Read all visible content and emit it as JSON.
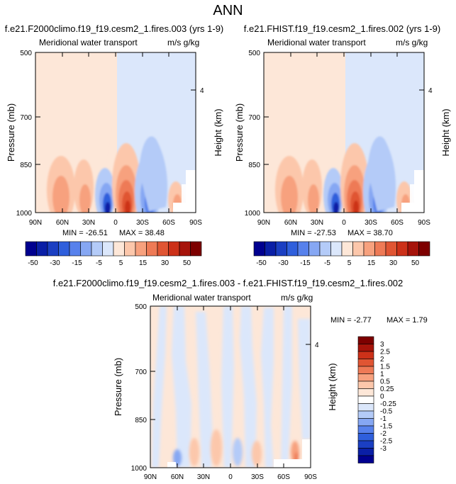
{
  "figure_title": "ANN",
  "chart_data": [
    {
      "type": "heatmap",
      "title": "f.e21.F2000climo.f19_f19.cesm2_1.fires.003 (yrs 1-9)",
      "variable": "Meridional water transport",
      "units": "m/s g/kg",
      "ylabel": "Pressure (mb)",
      "y2label": "Height (km)",
      "x_tick_labels": [
        "90N",
        "60N",
        "30N",
        "0",
        "30S",
        "60S",
        "90S"
      ],
      "x": [
        90,
        60,
        30,
        0,
        -30,
        -60,
        -90
      ],
      "xlim": [
        90,
        -90
      ],
      "y_tick_labels": [
        "500",
        "700",
        "850",
        "1000"
      ],
      "ylim": [
        1000,
        500
      ],
      "y2_tick_labels": [
        "4"
      ],
      "min_label": "MIN = -26.51",
      "max_label": "MAX =  38.48",
      "min": -26.51,
      "max": 38.48,
      "colorbar_labels": [
        "-50",
        "-30",
        "-15",
        "-5",
        "5",
        "15",
        "30",
        "50"
      ],
      "contour_levels": [
        -50,
        -40,
        -30,
        -20,
        -15,
        -10,
        -5,
        -2.5,
        0,
        2.5,
        5,
        10,
        15,
        20,
        30,
        40,
        50
      ]
    },
    {
      "type": "heatmap",
      "title": "f.e21.FHIST.f19_f19.cesm2_1.fires.002 (yrs 1-9)",
      "variable": "Meridional water transport",
      "units": "m/s g/kg",
      "ylabel": "Pressure (mb)",
      "y2label": "Height (km)",
      "x_tick_labels": [
        "90N",
        "60N",
        "30N",
        "0",
        "30S",
        "60S",
        "90S"
      ],
      "x": [
        90,
        60,
        30,
        0,
        -30,
        -60,
        -90
      ],
      "xlim": [
        90,
        -90
      ],
      "y_tick_labels": [
        "500",
        "700",
        "850",
        "1000"
      ],
      "ylim": [
        1000,
        500
      ],
      "y2_tick_labels": [
        "4"
      ],
      "min_label": "MIN = -27.53",
      "max_label": "MAX =  38.70",
      "min": -27.53,
      "max": 38.7,
      "colorbar_labels": [
        "-50",
        "-30",
        "-15",
        "-5",
        "5",
        "15",
        "30",
        "50"
      ],
      "contour_levels": [
        -50,
        -40,
        -30,
        -20,
        -15,
        -10,
        -5,
        -2.5,
        0,
        2.5,
        5,
        10,
        15,
        20,
        30,
        40,
        50
      ]
    },
    {
      "type": "heatmap",
      "title": "f.e21.F2000climo.f19_f19.cesm2_1.fires.003 - f.e21.FHIST.f19_f19.cesm2_1.fires.002",
      "variable": "Meridional water transport",
      "units": "m/s g/kg",
      "ylabel": "Pressure (mb)",
      "y2label": "Height (km)",
      "x_tick_labels": [
        "90N",
        "60N",
        "30N",
        "0",
        "30S",
        "60S",
        "90S"
      ],
      "x": [
        90,
        60,
        30,
        0,
        -30,
        -60,
        -90
      ],
      "xlim": [
        90,
        -90
      ],
      "y_tick_labels": [
        "500",
        "700",
        "850",
        "1000"
      ],
      "ylim": [
        1000,
        500
      ],
      "y2_tick_labels": [
        "4"
      ],
      "min_label": "MIN =  -2.77",
      "max_label": "MAX =   1.79",
      "min": -2.77,
      "max": 1.79,
      "colorbar_labels": [
        "3",
        "2.5",
        "2",
        "1.5",
        "1",
        "0.5",
        "0.25",
        "0",
        "-0.25",
        "-0.5",
        "-1",
        "-1.5",
        "-2",
        "-2.5",
        "-3"
      ],
      "contour_levels": [
        -3,
        -2.5,
        -2,
        -1.5,
        -1,
        -0.5,
        -0.25,
        0,
        0.25,
        0.5,
        1,
        1.5,
        2,
        2.5,
        3
      ]
    }
  ],
  "colors": {
    "top_colorbar": [
      "#00008f",
      "#0a1fa6",
      "#1b3fc2",
      "#2f5fdc",
      "#5781ec",
      "#86a7f3",
      "#b4cbf8",
      "#dbe7fb",
      "#fde7d8",
      "#fcc7ab",
      "#f7a17e",
      "#ee7a56",
      "#e05533",
      "#cc3119",
      "#a6130a",
      "#7d0000"
    ],
    "diff_colorbar_top_to_bottom": [
      "#7d0000",
      "#a6130a",
      "#cc3119",
      "#e05533",
      "#ee7a56",
      "#f7a17e",
      "#fcc7ab",
      "#fde7d8",
      "#ffffff",
      "#dbe7fb",
      "#b4cbf8",
      "#86a7f3",
      "#5781ec",
      "#2f5fdc",
      "#1b3fc2",
      "#0a1fa6",
      "#00008f"
    ]
  }
}
